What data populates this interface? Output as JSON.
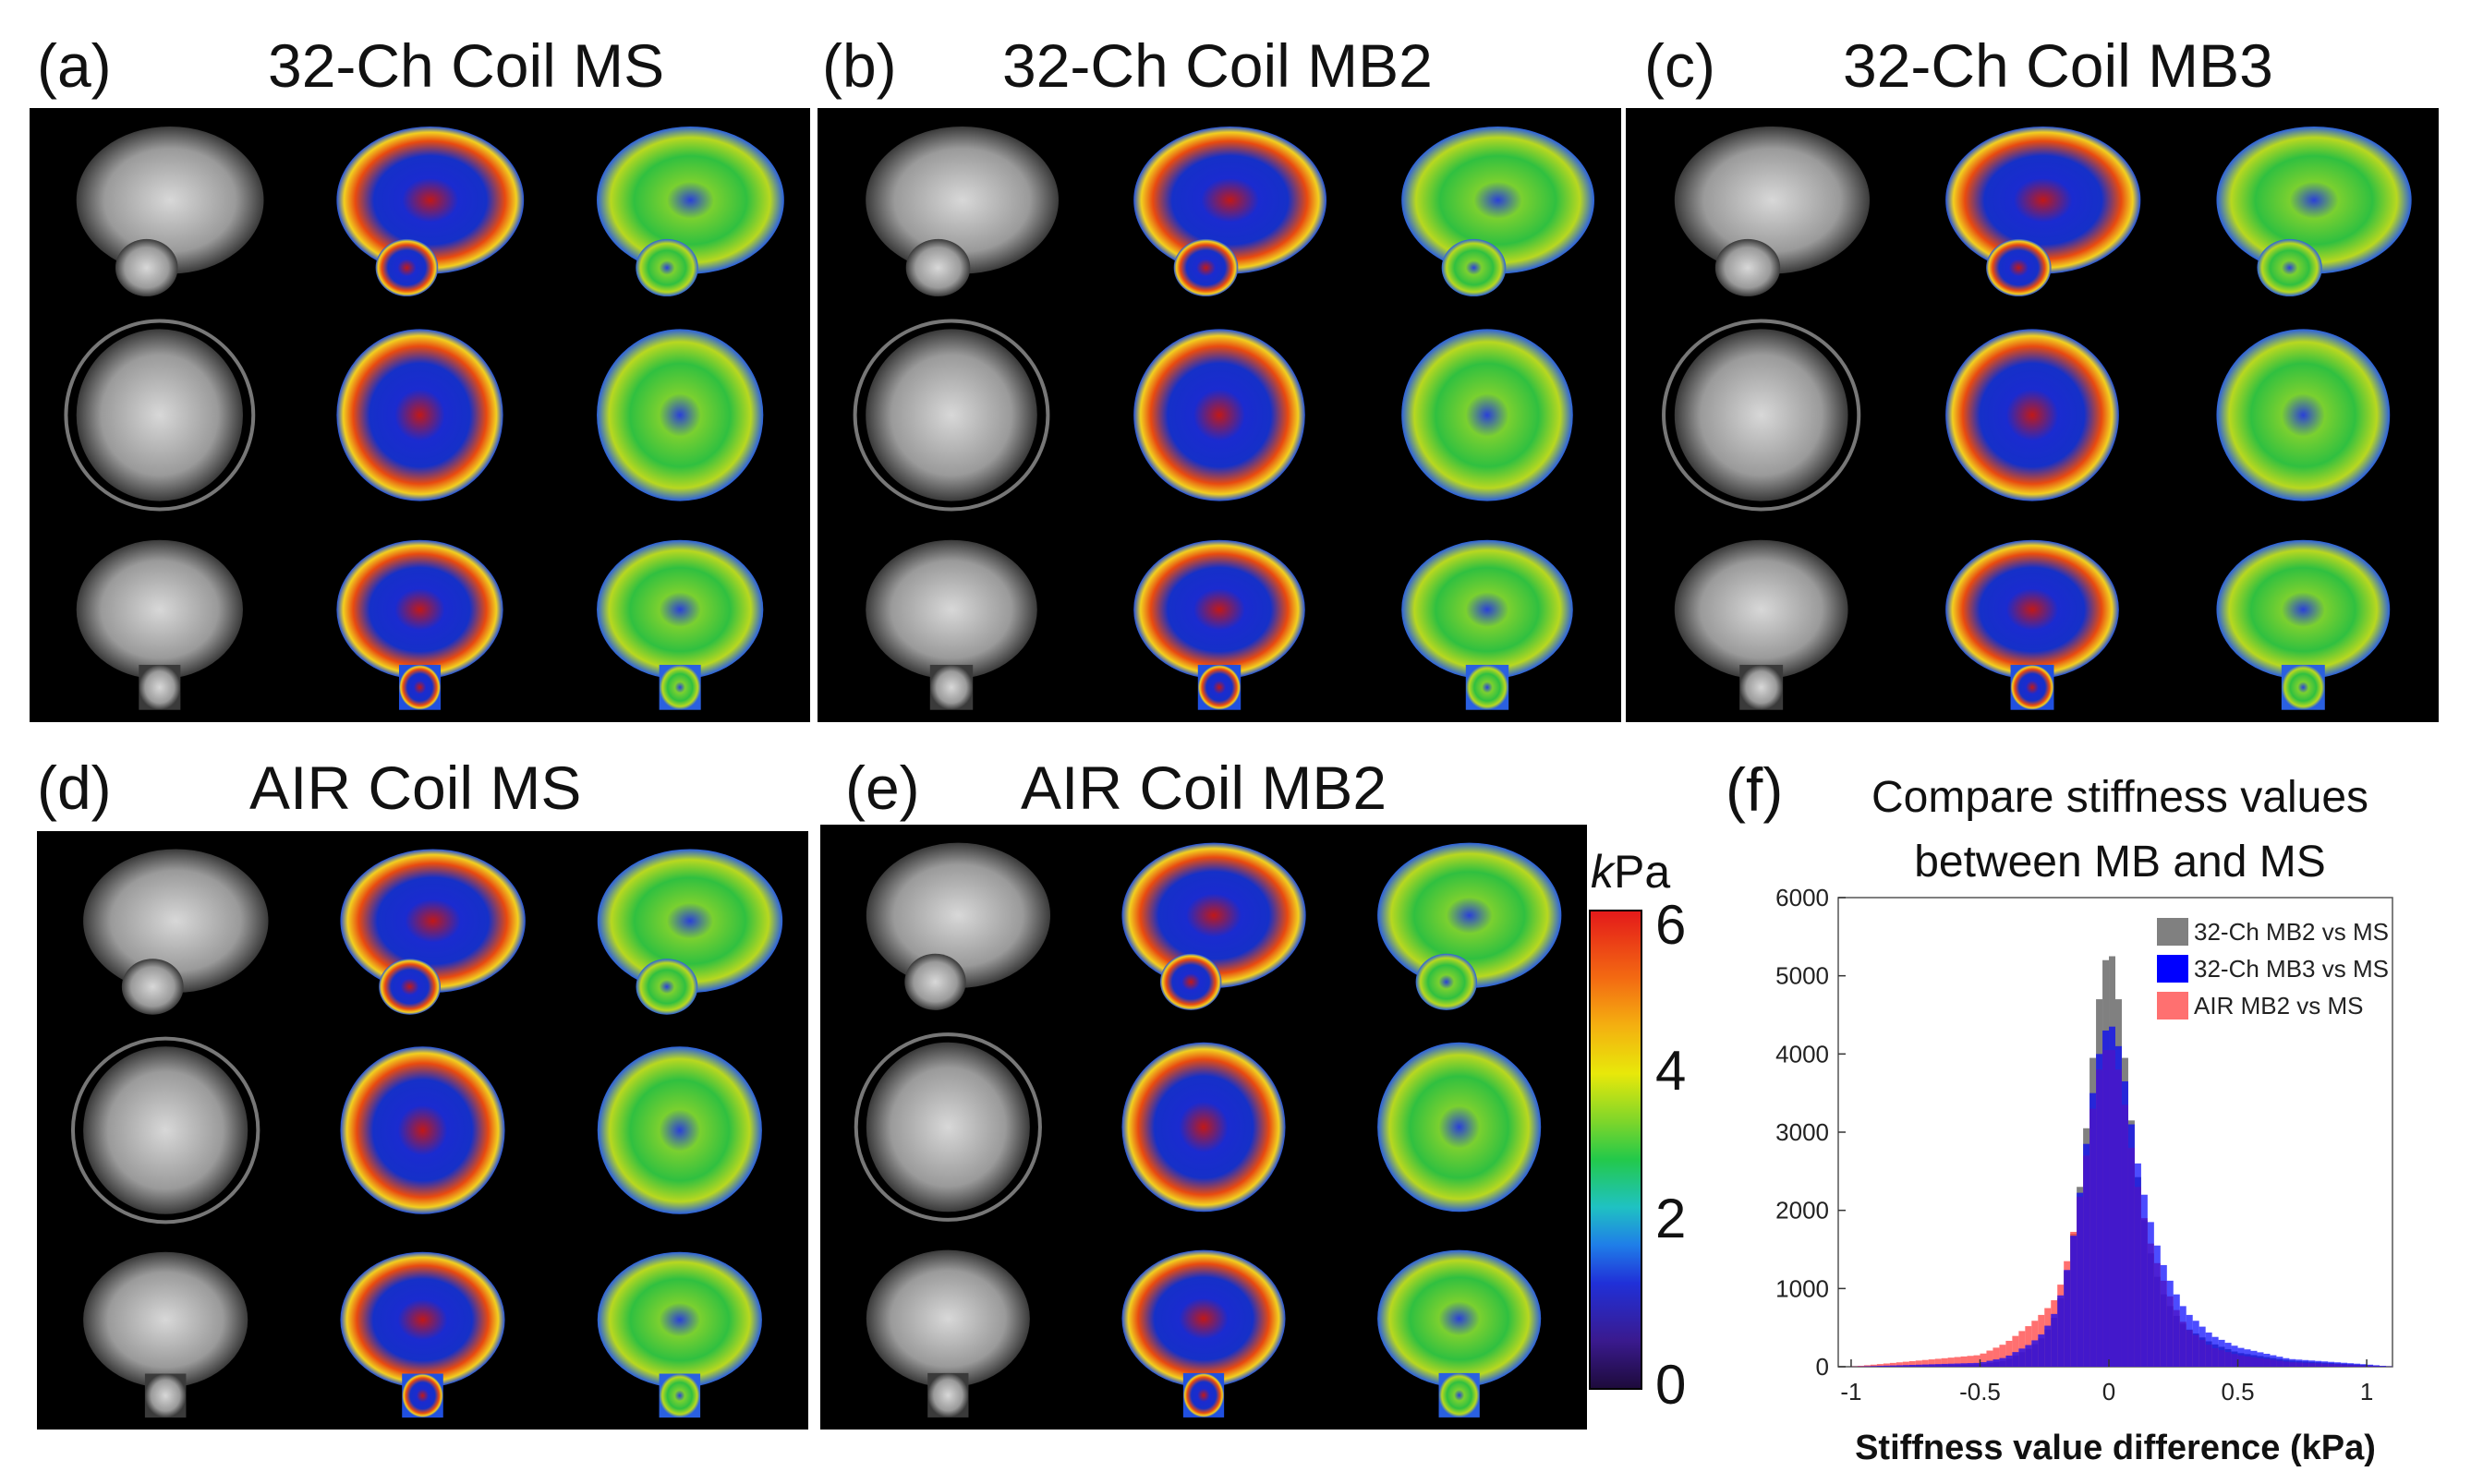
{
  "panels": [
    {
      "label": "(a)",
      "title": "32-Ch Coil MS"
    },
    {
      "label": "(b)",
      "title": "32-Ch Coil MB2"
    },
    {
      "label": "(c)",
      "title": "32-Ch Coil MB3"
    },
    {
      "label": "(d)",
      "title": "AIR Coil MS"
    },
    {
      "label": "(e)",
      "title": "AIR Coil MB2"
    }
  ],
  "colorbar": {
    "unit_italic": "k",
    "unit_rest": "Pa",
    "ticks": [
      "6",
      "4",
      "2",
      "0"
    ]
  },
  "histogram": {
    "label": "(f)",
    "title_line1": "Compare stiffness values",
    "title_line2": "between MB and MS",
    "xlabel": "Stiffness value difference (kPa)",
    "legend": [
      {
        "name": "32-Ch MB2 vs MS",
        "color": "#808080"
      },
      {
        "name": "32-Ch MB3 vs MS",
        "color": "#0000ff"
      },
      {
        "name": "AIR MB2 vs MS",
        "color": "#ff4040"
      }
    ]
  },
  "chart_data": {
    "type": "bar",
    "title": "Compare stiffness values between MB and MS",
    "xlabel": "Stiffness value difference (kPa)",
    "ylabel": "",
    "xlim": [
      -1.05,
      1.1
    ],
    "ylim": [
      0,
      6000
    ],
    "xticks": [
      -1,
      -0.5,
      0,
      0.5,
      1
    ],
    "xtick_labels": [
      "-1",
      "-0.5",
      "0",
      "0.5",
      "1"
    ],
    "yticks": [
      0,
      1000,
      2000,
      3000,
      4000,
      5000,
      6000
    ],
    "ytick_labels": [
      "0",
      "1000",
      "2000",
      "3000",
      "4000",
      "5000",
      "6000"
    ],
    "bin_width": 0.025,
    "x": [
      -0.5,
      -0.4,
      -0.3,
      -0.25,
      -0.2,
      -0.15,
      -0.1,
      -0.075,
      -0.05,
      -0.025,
      0,
      0.025,
      0.05,
      0.075,
      0.1,
      0.15,
      0.2,
      0.25,
      0.3,
      0.4,
      0.5,
      0.7,
      1.0
    ],
    "series": [
      {
        "name": "32-Ch MB2 vs MS",
        "values": [
          30,
          80,
          250,
          400,
          700,
          1400,
          2600,
          3500,
          4400,
          5000,
          5400,
          5100,
          4300,
          3600,
          2700,
          1600,
          1000,
          700,
          500,
          300,
          180,
          80,
          20
        ]
      },
      {
        "name": "32-Ch MB3 vs MS",
        "values": [
          50,
          120,
          300,
          450,
          750,
          1400,
          2500,
          3200,
          3800,
          4200,
          4400,
          4300,
          3900,
          3400,
          2800,
          2000,
          1400,
          1000,
          700,
          400,
          250,
          100,
          30
        ]
      },
      {
        "name": "AIR MB2 vs MS",
        "values": [
          150,
          300,
          550,
          700,
          900,
          1500,
          2400,
          3000,
          3600,
          4000,
          4100,
          4000,
          3600,
          3100,
          2500,
          1700,
          1200,
          800,
          500,
          250,
          150,
          60,
          15
        ]
      }
    ]
  }
}
